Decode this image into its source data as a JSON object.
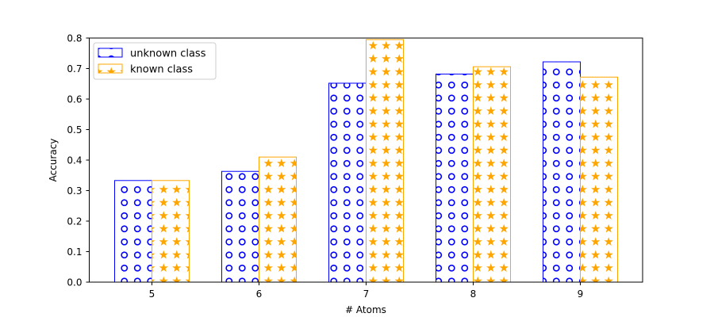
{
  "chart_data": {
    "type": "bar",
    "title": "",
    "xlabel": "# Atoms",
    "ylabel": "Accuracy",
    "categories": [
      "5",
      "6",
      "7",
      "8",
      "9"
    ],
    "ylim": [
      0,
      0.8
    ],
    "yticks": [
      "0.0",
      "0.1",
      "0.2",
      "0.3",
      "0.4",
      "0.5",
      "0.6",
      "0.7",
      "0.8"
    ],
    "legend_position": "top-left",
    "grid": false,
    "series": [
      {
        "name": "unknown class",
        "color": "#0000ff",
        "hatch": "circles",
        "values": [
          0.333,
          0.363,
          0.652,
          0.682,
          0.722
        ]
      },
      {
        "name": "known class",
        "color": "#ffa500",
        "hatch": "stars",
        "values": [
          0.333,
          0.41,
          0.795,
          0.706,
          0.672
        ]
      }
    ]
  }
}
